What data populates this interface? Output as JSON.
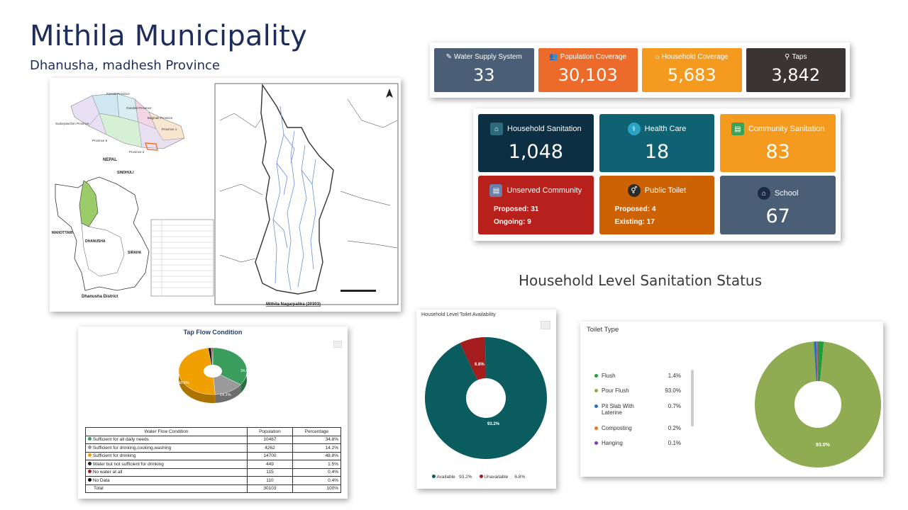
{
  "header": {
    "title": "Mithila Municipality",
    "subtitle": "Dhanusha, madhesh Province"
  },
  "map": {
    "labels": {
      "karnali": "Karnali Province",
      "gandaki": "Gandaki Province",
      "bagmati": "Bagmati Province",
      "sudurpaschim": "Sudurpaschim Province",
      "province1": "Province 1",
      "province5": "Province 5",
      "province2": "Province 2",
      "nepal": "NEPAL",
      "sindhuli": "SINDHULI",
      "mahottari": "MAHOTTARI",
      "dhanusha": "DHANUSHA",
      "siraha": "SIRAHA",
      "district": "Dhanusha District",
      "caption": "Mithila Nagarpalika (20303)"
    }
  },
  "top_stats": [
    {
      "label": "Water Supply System",
      "value": "33",
      "color": "#4a5e75",
      "icon": "edit-icon"
    },
    {
      "label": "Population Coverage",
      "value": "30,103",
      "color": "#ec6a2a",
      "icon": "users-icon"
    },
    {
      "label": "Household Coverage",
      "value": "5,683",
      "color": "#f39a1f",
      "icon": "home-icon"
    },
    {
      "label": "Taps",
      "value": "3,842",
      "color": "#3b3434",
      "icon": "tap-icon"
    }
  ],
  "sanitation": [
    {
      "label": "Household Sanitation",
      "value": "1,048",
      "color": "#0d2f44",
      "icon": "house-icon"
    },
    {
      "label": "Health Care",
      "value": "18",
      "color": "#0f6272",
      "icon": "health-icon"
    },
    {
      "label": "Community Sanitation",
      "value": "83",
      "color": "#f39a1f",
      "icon": "community-icon"
    },
    {
      "label": "Unserved Community",
      "line1": "Proposed: 31",
      "line2": "Ongoing: 9",
      "color": "#b8201b",
      "icon": "clipboard-icon"
    },
    {
      "label": "Public Toilet",
      "line1": "Proposed: 4",
      "line2": "Existing: 17",
      "color": "#cc6204",
      "icon": "toilet-icon"
    },
    {
      "label": "School",
      "value": "67",
      "color": "#4a5e75",
      "icon": "school-icon"
    }
  ],
  "section_heading": "Household Level Sanitation Status",
  "tap_flow": {
    "title": "Tap Flow Condition",
    "headers": [
      "Water Flow Condition",
      "Population",
      "Percentage"
    ],
    "rows": [
      {
        "name": "Sufficient for all daily needs",
        "pop": "10467",
        "pct": "34.8%",
        "color": "#3a9d5d"
      },
      {
        "name": "Sufficient for drinking,cooking,washing",
        "pop": "4262",
        "pct": "14.2%",
        "color": "#9a9a9a"
      },
      {
        "name": "Sufficient for drinking",
        "pop": "14700",
        "pct": "48.8%",
        "color": "#f0a000"
      },
      {
        "name": "Water but not sufficient for drinking",
        "pop": "449",
        "pct": "1.5%",
        "color": "#1a1a1a"
      },
      {
        "name": "No water at all",
        "pop": "115",
        "pct": "0.4%",
        "color": "#a02020"
      },
      {
        "name": "No Data",
        "pop": "110",
        "pct": "0.4%",
        "color": "#000000"
      }
    ],
    "total": {
      "name": "Total",
      "pop": "30103",
      "pct": "100%"
    },
    "pie_labels": [
      "34.8%",
      "14.2%",
      "48.8%"
    ]
  },
  "availability": {
    "title": "Household Level Toilet Availability",
    "series": [
      {
        "name": "Available",
        "value": 93.2,
        "pct": "93.2%",
        "color": "#0b5c5e"
      },
      {
        "name": "Unavailable",
        "value": 6.8,
        "pct": "6.8%",
        "color": "#a51c1c"
      }
    ]
  },
  "toilet_type": {
    "title": "Toilet Type",
    "items": [
      {
        "name": "Flush",
        "value": 1.4,
        "pct": "1.4%",
        "color": "#1f9d3a"
      },
      {
        "name": "Pour Flush",
        "value": 93.0,
        "pct": "93.0%",
        "color": "#8fac52"
      },
      {
        "name": "Pit Slab With Laterine",
        "value": 0.7,
        "pct": "0.7%",
        "color": "#2f6fb5"
      },
      {
        "name": "Composting",
        "value": 0.2,
        "pct": "0.2%",
        "color": "#f07020"
      },
      {
        "name": "Hanging",
        "value": 0.1,
        "pct": "0.1%",
        "color": "#7b3fb0"
      }
    ],
    "center_label": "93.0%"
  }
}
